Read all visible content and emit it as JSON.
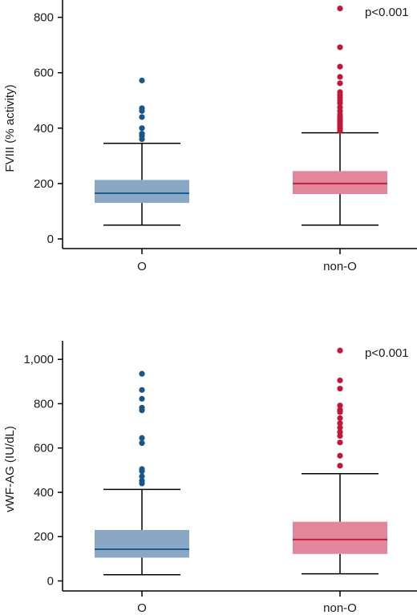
{
  "colors": {
    "O": {
      "box": "#8aa8c6",
      "median": "#1d5d8c",
      "outlier": "#1a5689"
    },
    "non-O": {
      "box": "#e4869b",
      "median": "#c0203c",
      "outlier": "#c0173a"
    }
  },
  "chart_data": [
    {
      "type": "box",
      "ylabel": "FVIII (% activity)",
      "ylim": [
        0,
        840
      ],
      "yticks": [
        "0",
        "200",
        "400",
        "600",
        "800"
      ],
      "ytick_values": [
        0,
        200,
        400,
        600,
        800
      ],
      "categories": [
        "O",
        "non-O"
      ],
      "annotation": "p<0.001",
      "boxes": [
        {
          "group": "O",
          "whisker_low": 50,
          "q1": 130,
          "median": 165,
          "q3": 213,
          "whisker_high": 345,
          "outliers": [
            360,
            372,
            380,
            400,
            440,
            462,
            472,
            572
          ]
        },
        {
          "group": "non-O",
          "whisker_low": 50,
          "q1": 162,
          "median": 200,
          "q3": 245,
          "whisker_high": 383,
          "outliers": [
            390,
            398,
            405,
            412,
            418,
            425,
            432,
            440,
            450,
            462,
            475,
            490,
            500,
            510,
            520,
            530,
            562,
            585,
            622,
            692,
            832
          ]
        }
      ]
    },
    {
      "type": "box",
      "ylabel": "vWF-AG (IU/dL)",
      "ylim": [
        0,
        1060
      ],
      "yticks": [
        "0",
        "200",
        "400",
        "600",
        "800",
        "1,000"
      ],
      "ytick_values": [
        0,
        200,
        400,
        600,
        800,
        1000
      ],
      "categories": [
        "O",
        "non-O"
      ],
      "annotation": "p<0.001",
      "boxes": [
        {
          "group": "O",
          "whisker_low": 28,
          "q1": 105,
          "median": 143,
          "q3": 230,
          "whisker_high": 413,
          "outliers": [
            440,
            452,
            472,
            495,
            505,
            622,
            645,
            770,
            782,
            822,
            862,
            935
          ]
        },
        {
          "group": "non-O",
          "whisker_low": 32,
          "q1": 122,
          "median": 187,
          "q3": 267,
          "whisker_high": 484,
          "outliers": [
            520,
            565,
            625,
            655,
            672,
            692,
            712,
            735,
            762,
            772,
            792,
            868,
            905,
            1040
          ]
        }
      ]
    }
  ]
}
